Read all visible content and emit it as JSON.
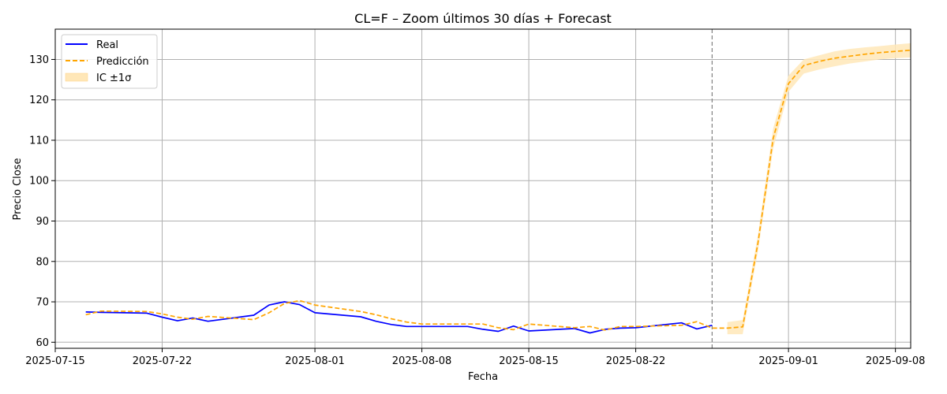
{
  "chart_data": {
    "type": "line",
    "title": "CL=F – Zoom últimos 30 días + Forecast",
    "xlabel": "Fecha",
    "ylabel": "Precio Close",
    "xlim": [
      "2025-07-15",
      "2025-09-09"
    ],
    "ylim": [
      58.5,
      137.5
    ],
    "x_ticks": [
      "2025-07-15",
      "2025-07-22",
      "2025-08-01",
      "2025-08-08",
      "2025-08-15",
      "2025-08-22",
      "2025-09-01",
      "2025-09-08"
    ],
    "y_ticks": [
      60,
      70,
      80,
      90,
      100,
      110,
      120,
      130
    ],
    "grid": true,
    "legend_position": "top-left",
    "forecast_start": "2025-08-27",
    "colors": {
      "real": "#0000ff",
      "prediccion": "#ffa500",
      "band": "#ffe7b8",
      "vline": "#808080"
    },
    "series": [
      {
        "name": "Real",
        "style": "solid",
        "points": [
          [
            "2025-07-17",
            67.5
          ],
          [
            "2025-07-18",
            67.4
          ],
          [
            "2025-07-21",
            67.2
          ],
          [
            "2025-07-22",
            66.2
          ],
          [
            "2025-07-23",
            65.3
          ],
          [
            "2025-07-24",
            66.0
          ],
          [
            "2025-07-25",
            65.2
          ],
          [
            "2025-07-28",
            66.7
          ],
          [
            "2025-07-29",
            69.2
          ],
          [
            "2025-07-30",
            70.0
          ],
          [
            "2025-07-31",
            69.3
          ],
          [
            "2025-08-01",
            67.3
          ],
          [
            "2025-08-04",
            66.3
          ],
          [
            "2025-08-05",
            65.2
          ],
          [
            "2025-08-06",
            64.4
          ],
          [
            "2025-08-07",
            63.9
          ],
          [
            "2025-08-08",
            63.9
          ],
          [
            "2025-08-11",
            63.9
          ],
          [
            "2025-08-12",
            63.2
          ],
          [
            "2025-08-13",
            62.7
          ],
          [
            "2025-08-14",
            64.0
          ],
          [
            "2025-08-15",
            62.8
          ],
          [
            "2025-08-18",
            63.4
          ],
          [
            "2025-08-19",
            62.3
          ],
          [
            "2025-08-20",
            63.2
          ],
          [
            "2025-08-21",
            63.5
          ],
          [
            "2025-08-22",
            63.6
          ],
          [
            "2025-08-25",
            64.8
          ],
          [
            "2025-08-26",
            63.3
          ],
          [
            "2025-08-27",
            64.2
          ]
        ]
      },
      {
        "name": "Predicción",
        "style": "dashed",
        "points": [
          [
            "2025-07-17",
            66.8
          ],
          [
            "2025-07-18",
            67.7
          ],
          [
            "2025-07-21",
            67.6
          ],
          [
            "2025-07-22",
            67.0
          ],
          [
            "2025-07-23",
            66.2
          ],
          [
            "2025-07-24",
            65.7
          ],
          [
            "2025-07-25",
            66.4
          ],
          [
            "2025-07-28",
            65.6
          ],
          [
            "2025-07-29",
            67.3
          ],
          [
            "2025-07-30",
            69.6
          ],
          [
            "2025-07-31",
            70.3
          ],
          [
            "2025-08-01",
            69.2
          ],
          [
            "2025-08-04",
            67.6
          ],
          [
            "2025-08-05",
            66.8
          ],
          [
            "2025-08-06",
            65.8
          ],
          [
            "2025-08-07",
            65.0
          ],
          [
            "2025-08-08",
            64.5
          ],
          [
            "2025-08-11",
            64.5
          ],
          [
            "2025-08-12",
            64.5
          ],
          [
            "2025-08-13",
            63.6
          ],
          [
            "2025-08-14",
            63.1
          ],
          [
            "2025-08-15",
            64.5
          ],
          [
            "2025-08-18",
            63.6
          ],
          [
            "2025-08-19",
            63.9
          ],
          [
            "2025-08-20",
            63.0
          ],
          [
            "2025-08-21",
            63.9
          ],
          [
            "2025-08-22",
            63.9
          ],
          [
            "2025-08-25",
            64.2
          ],
          [
            "2025-08-26",
            65.1
          ],
          [
            "2025-08-27",
            63.5
          ],
          [
            "2025-08-28",
            63.5
          ],
          [
            "2025-08-29",
            63.8
          ],
          [
            "2025-08-30",
            84.5
          ],
          [
            "2025-08-31",
            110.5
          ],
          [
            "2025-09-01",
            124.0
          ],
          [
            "2025-09-02",
            128.5
          ],
          [
            "2025-09-03",
            129.5
          ],
          [
            "2025-09-04",
            130.3
          ],
          [
            "2025-09-05",
            130.8
          ],
          [
            "2025-09-06",
            131.3
          ],
          [
            "2025-09-07",
            131.7
          ],
          [
            "2025-09-08",
            132.0
          ],
          [
            "2025-09-09",
            132.3
          ]
        ]
      },
      {
        "name": "IC ±1σ",
        "style": "band",
        "band_points": [
          [
            "2025-08-28",
            62.0,
            65.0
          ],
          [
            "2025-08-29",
            62.0,
            65.5
          ],
          [
            "2025-08-30",
            82.5,
            86.5
          ],
          [
            "2025-08-31",
            108.0,
            113.0
          ],
          [
            "2025-09-01",
            122.0,
            126.0
          ],
          [
            "2025-09-02",
            126.5,
            130.0
          ],
          [
            "2025-09-03",
            127.5,
            131.0
          ],
          [
            "2025-09-04",
            128.3,
            132.0
          ],
          [
            "2025-09-05",
            129.0,
            132.6
          ],
          [
            "2025-09-06",
            129.5,
            133.0
          ],
          [
            "2025-09-07",
            130.0,
            133.3
          ],
          [
            "2025-09-08",
            130.3,
            133.7
          ],
          [
            "2025-09-09",
            130.5,
            134.0
          ]
        ]
      }
    ]
  }
}
